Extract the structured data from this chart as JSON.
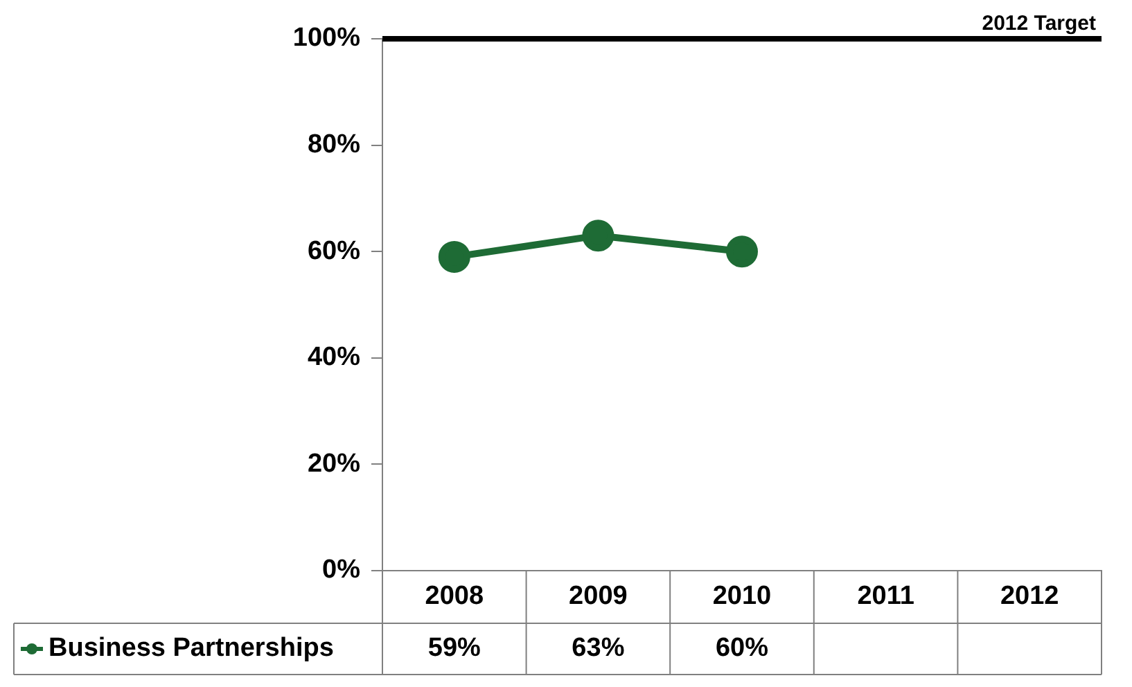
{
  "chart_data": {
    "type": "line",
    "categories": [
      "2008",
      "2009",
      "2010",
      "2011",
      "2012"
    ],
    "series": [
      {
        "name": "Business Partnerships",
        "color": "#1e6b35",
        "values": [
          59,
          63,
          60,
          null,
          null
        ],
        "value_labels": [
          "59%",
          "63%",
          "60%",
          null,
          null
        ]
      }
    ],
    "ylim": [
      0,
      100
    ],
    "yticks": [
      {
        "value": 0,
        "label": "0%"
      },
      {
        "value": 20,
        "label": "20%"
      },
      {
        "value": 40,
        "label": "40%"
      },
      {
        "value": 60,
        "label": "60%"
      },
      {
        "value": 80,
        "label": "80%"
      },
      {
        "value": 100,
        "label": "100%"
      }
    ],
    "ref_lines": [
      {
        "axis": "y",
        "value": 100,
        "label": "2012 Target",
        "color": "#000000"
      }
    ],
    "marker": "circle",
    "line_style": "solid",
    "grid": false,
    "legend": "bottom left"
  }
}
